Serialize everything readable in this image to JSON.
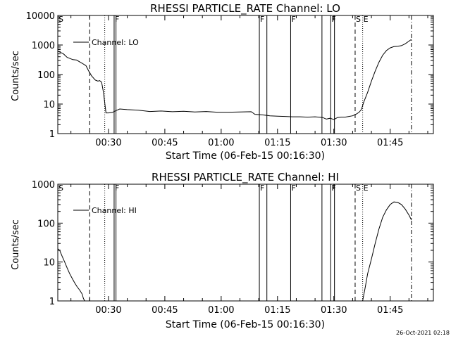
{
  "footer": {
    "date": "26-Oct-2021 02:18"
  },
  "chart_data": [
    {
      "type": "line",
      "title": "RHESSI PARTICLE_RATE Channel: LO",
      "xlabel": "Start Time (06-Feb-15 00:16:30)",
      "ylabel": "Counts/sec",
      "yscale": "log",
      "xlim": [
        "00:16:30",
        "01:56:30"
      ],
      "ylim": [
        1,
        10000
      ],
      "x_tick_labels": [
        "00:30",
        "00:45",
        "01:00",
        "01:15",
        "01:30",
        "01:45"
      ],
      "y_tick_labels": [
        "1",
        "10",
        "100",
        "1000",
        "10000"
      ],
      "legend": {
        "label": "Channel: LO",
        "placement": "top-left"
      },
      "markers": [
        {
          "label": "S",
          "time": "00:16:30",
          "style": "none"
        },
        {
          "label": "",
          "time": "00:25:00",
          "style": "dashed"
        },
        {
          "label": "",
          "time": "00:29:00",
          "style": "dotted"
        },
        {
          "label": "F",
          "time": "00:31:30",
          "style": "solid"
        },
        {
          "label": "",
          "time": "00:32:00",
          "style": "solid"
        },
        {
          "label": "F",
          "time": "01:10:10",
          "style": "solid"
        },
        {
          "label": "",
          "time": "01:12:10",
          "style": "solid"
        },
        {
          "label": "F",
          "time": "01:18:30",
          "style": "solid"
        },
        {
          "label": "",
          "time": "01:26:50",
          "style": "solid"
        },
        {
          "label": "F",
          "time": "01:29:10",
          "style": "solid"
        },
        {
          "label": "",
          "time": "01:30:10",
          "style": "solid"
        },
        {
          "label": "S",
          "time": "01:35:40",
          "style": "dashed"
        },
        {
          "label": "E",
          "time": "01:37:40",
          "style": "dotted"
        },
        {
          "label": "",
          "time": "01:50:40",
          "style": "dashdot"
        }
      ],
      "series": [
        {
          "x": [
            "00:16:30",
            "00:18:00",
            "00:19:00",
            "00:20:30",
            "00:21:30",
            "00:22:30",
            "00:23:00",
            "00:24:00",
            "00:24:45",
            "00:25:30",
            "00:26:30",
            "00:27:10",
            "00:27:40",
            "00:28:10",
            "00:28:40",
            "00:29:20",
            "00:30:00",
            "00:31:00",
            "00:32:00",
            "00:33:00",
            "00:35:00",
            "00:38:00",
            "00:41:00",
            "00:44:00",
            "00:47:00",
            "00:50:00",
            "00:53:00",
            "00:56:00",
            "00:59:00",
            "01:02:00",
            "01:05:00",
            "01:08:00",
            "01:09:00",
            "01:11:00",
            "01:13:00",
            "01:15:00",
            "01:17:00",
            "01:19:00",
            "01:21:00",
            "01:23:00",
            "01:25:00",
            "01:27:00",
            "01:28:00",
            "01:29:00",
            "01:30:00",
            "01:31:00",
            "01:32:00",
            "01:33:00",
            "01:34:00",
            "01:35:00",
            "01:36:00",
            "01:36:40",
            "01:37:20",
            "01:38:00",
            "01:39:00",
            "01:40:00",
            "01:41:00",
            "01:42:00",
            "01:43:00",
            "01:44:00",
            "01:45:00",
            "01:46:00",
            "01:47:00",
            "01:48:00",
            "01:49:00",
            "01:50:00",
            "01:50:40"
          ],
          "values": [
            620,
            500,
            380,
            320,
            310,
            260,
            240,
            200,
            130,
            90,
            65,
            60,
            62,
            55,
            25,
            5,
            5,
            5.2,
            6,
            6.8,
            6.5,
            6.2,
            5.6,
            5.8,
            5.5,
            5.7,
            5.4,
            5.6,
            5.3,
            5.3,
            5.4,
            5.5,
            4.5,
            4.3,
            4.0,
            3.9,
            3.8,
            3.7,
            3.7,
            3.6,
            3.7,
            3.5,
            3.1,
            3.3,
            3.0,
            3.5,
            3.6,
            3.6,
            3.8,
            4.0,
            4.6,
            5.2,
            6.5,
            12,
            25,
            60,
            130,
            260,
            450,
            650,
            800,
            880,
            900,
            950,
            1100,
            1350,
            1550
          ]
        }
      ]
    },
    {
      "type": "line",
      "title": "RHESSI PARTICLE_RATE Channel: HI",
      "xlabel": "Start Time (06-Feb-15 00:16:30)",
      "ylabel": "Counts/sec",
      "yscale": "log",
      "xlim": [
        "00:16:30",
        "01:56:30"
      ],
      "ylim": [
        1,
        1000
      ],
      "x_tick_labels": [
        "00:30",
        "00:45",
        "01:00",
        "01:15",
        "01:30",
        "01:45"
      ],
      "y_tick_labels": [
        "1",
        "10",
        "100",
        "1000"
      ],
      "legend": {
        "label": "Channel: HI",
        "placement": "top-left"
      },
      "markers": [
        {
          "label": "S",
          "time": "00:16:30",
          "style": "none"
        },
        {
          "label": "",
          "time": "00:25:00",
          "style": "dashed"
        },
        {
          "label": "",
          "time": "00:29:00",
          "style": "dotted"
        },
        {
          "label": "F",
          "time": "00:31:30",
          "style": "solid"
        },
        {
          "label": "",
          "time": "00:32:00",
          "style": "solid"
        },
        {
          "label": "F",
          "time": "01:10:10",
          "style": "solid"
        },
        {
          "label": "",
          "time": "01:12:10",
          "style": "solid"
        },
        {
          "label": "F",
          "time": "01:18:30",
          "style": "solid"
        },
        {
          "label": "",
          "time": "01:26:50",
          "style": "solid"
        },
        {
          "label": "F",
          "time": "01:29:10",
          "style": "solid"
        },
        {
          "label": "",
          "time": "01:30:10",
          "style": "solid"
        },
        {
          "label": "S",
          "time": "01:35:40",
          "style": "dashed"
        },
        {
          "label": "E",
          "time": "01:37:40",
          "style": "dotted"
        },
        {
          "label": "",
          "time": "01:50:40",
          "style": "dashdot"
        }
      ],
      "series": [
        {
          "x": [
            "00:16:30",
            "00:17:00",
            "00:17:40",
            "00:18:20",
            "00:19:00",
            "00:19:40",
            "00:20:20",
            "00:21:00",
            "00:21:40",
            "00:22:20",
            "00:23:00",
            "00:23:20",
            "00:23:40"
          ],
          "values": [
            22,
            20,
            14,
            10,
            7,
            5,
            3.8,
            2.9,
            2.3,
            1.9,
            1.5,
            1.15,
            1
          ]
        },
        {
          "x": [
            "01:37:40",
            "01:38:20",
            "01:39:00",
            "01:40:00",
            "01:41:00",
            "01:42:00",
            "01:43:00",
            "01:44:00",
            "01:45:00",
            "01:46:00",
            "01:47:00",
            "01:48:00",
            "01:49:00",
            "01:50:00",
            "01:50:40"
          ],
          "values": [
            1,
            2.2,
            5,
            12,
            30,
            70,
            140,
            220,
            300,
            350,
            340,
            300,
            230,
            160,
            120
          ]
        }
      ]
    }
  ]
}
